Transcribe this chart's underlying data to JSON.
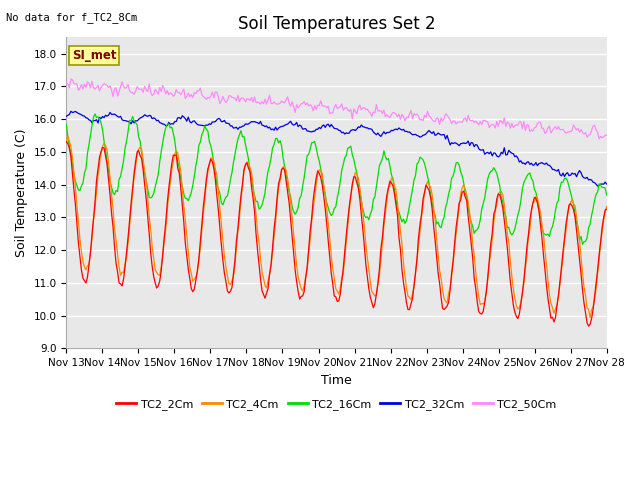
{
  "title": "Soil Temperatures Set 2",
  "top_left_text": "No data for f_TC2_8Cm",
  "ylabel": "Soil Temperature (C)",
  "xlabel": "Time",
  "ylim": [
    9.0,
    18.5
  ],
  "yticks": [
    9.0,
    10.0,
    11.0,
    12.0,
    13.0,
    14.0,
    15.0,
    16.0,
    17.0,
    18.0
  ],
  "x_labels": [
    "Nov 13",
    "Nov 14",
    "Nov 15",
    "Nov 16",
    "Nov 17",
    "Nov 18",
    "Nov 19",
    "Nov 20",
    "Nov 21",
    "Nov 22",
    "Nov 23",
    "Nov 24",
    "Nov 25",
    "Nov 26",
    "Nov 27",
    "Nov 28"
  ],
  "series_colors": {
    "TC2_2Cm": "#ff0000",
    "TC2_4Cm": "#ff8800",
    "TC2_16Cm": "#00dd00",
    "TC2_32Cm": "#0000dd",
    "TC2_50Cm": "#ff88ff"
  },
  "series_labels": [
    "TC2_2Cm",
    "TC2_4Cm",
    "TC2_16Cm",
    "TC2_32Cm",
    "TC2_50Cm"
  ],
  "background_color": "#ffffff",
  "plot_bg_color": "#e8e8e8",
  "grid_color": "#ffffff",
  "annotation_text": "SI_met",
  "annotation_bg": "#ffff99",
  "annotation_border": "#999900",
  "title_fontsize": 12,
  "axis_fontsize": 9,
  "tick_fontsize": 7.5
}
